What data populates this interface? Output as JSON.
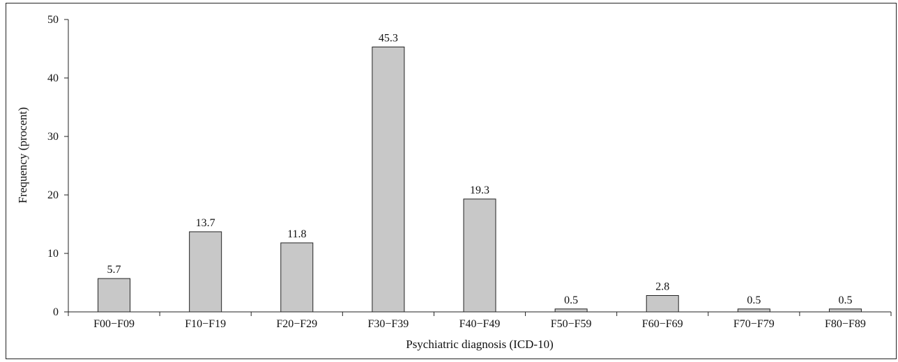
{
  "chart_data": {
    "type": "bar",
    "xlabel": "Psychiatric diagnosis (ICD-10)",
    "ylabel": "Frequency (procent)",
    "ylim": [
      0,
      50
    ],
    "yticks": [
      0,
      10,
      20,
      30,
      40,
      50
    ],
    "categories": [
      "F00−F09",
      "F10−F19",
      "F20−F29",
      "F30−F39",
      "F40−F49",
      "F50−F59",
      "F60−F69",
      "F70−F79",
      "F80−F89"
    ],
    "values": [
      5.7,
      13.7,
      11.8,
      45.3,
      19.3,
      0.5,
      2.8,
      0.5,
      0.5
    ],
    "data_labels": [
      "5.7",
      "13.7",
      "11.8",
      "45.3",
      "19.3",
      "0.5",
      "2.8",
      "0.5",
      "0.5"
    ],
    "bar_color": "#c8c8c8",
    "bar_edge_color": "#222222",
    "grid": false,
    "legend": "none"
  }
}
